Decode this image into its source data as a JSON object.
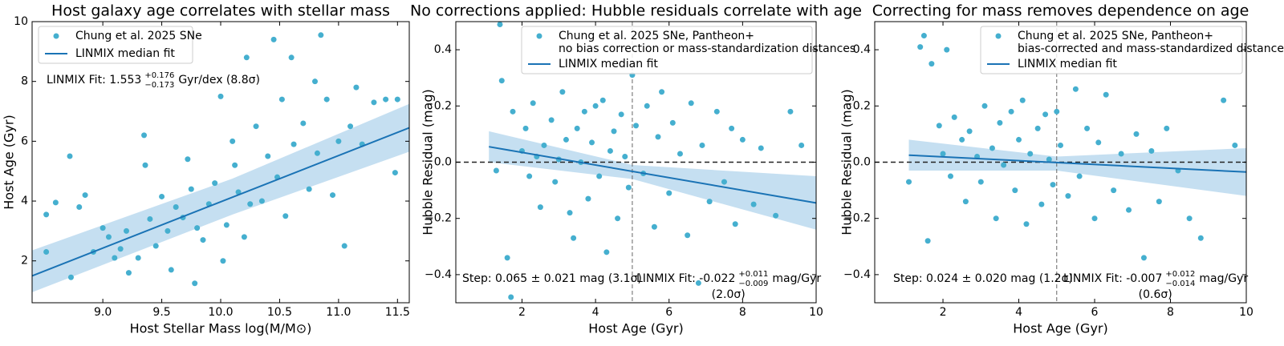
{
  "chart_data": [
    {
      "type": "scatter",
      "title": "Host galaxy age correlates with stellar mass",
      "xlabel": "Host Stellar Mass log(M/M⊙)",
      "ylabel": "Host Age (Gyr)",
      "xlim": [
        8.4,
        11.6
      ],
      "ylim": [
        0.6,
        10
      ],
      "xticks": [
        {
          "value": 9,
          "label": "9.0"
        },
        9.5,
        {
          "value": 10,
          "label": "10.0"
        },
        10.5,
        {
          "value": 11,
          "label": "11.0"
        },
        11.5
      ],
      "yticks": [
        2,
        4,
        6,
        8,
        10
      ],
      "series": [
        {
          "name": "Chung et al. 2025 SNe",
          "color": "#45afcf",
          "x": [
            8.52,
            8.52,
            8.6,
            8.72,
            8.73,
            8.8,
            8.85,
            8.92,
            9.0,
            9.05,
            9.1,
            9.15,
            9.2,
            9.22,
            9.3,
            9.35,
            9.36,
            9.4,
            9.45,
            9.5,
            9.55,
            9.58,
            9.62,
            9.68,
            9.72,
            9.75,
            9.78,
            9.8,
            9.85,
            9.9,
            9.95,
            10.0,
            10.02,
            10.05,
            10.1,
            10.12,
            10.15,
            10.2,
            10.22,
            10.25,
            10.3,
            10.35,
            10.4,
            10.45,
            10.48,
            10.52,
            10.55,
            10.6,
            10.62,
            10.7,
            10.75,
            10.8,
            10.82,
            10.85,
            10.9,
            10.95,
            11.0,
            11.05,
            11.1,
            11.15,
            11.2,
            11.3,
            11.4,
            11.48,
            11.5
          ],
          "values": [
            3.55,
            2.3,
            3.95,
            5.5,
            1.45,
            3.8,
            4.2,
            2.3,
            3.1,
            2.8,
            2.1,
            2.4,
            3.0,
            1.6,
            2.1,
            6.2,
            5.2,
            3.4,
            2.5,
            4.15,
            3.0,
            1.7,
            3.8,
            3.45,
            5.4,
            4.4,
            1.25,
            3.1,
            2.7,
            3.9,
            4.6,
            7.5,
            2.0,
            3.2,
            6.0,
            5.2,
            4.3,
            2.8,
            8.8,
            3.9,
            6.5,
            4.0,
            5.5,
            9.4,
            4.8,
            7.4,
            3.5,
            8.8,
            5.9,
            6.6,
            4.4,
            8.0,
            5.6,
            9.55,
            7.4,
            4.2,
            6.0,
            2.5,
            6.5,
            7.8,
            5.9,
            7.3,
            7.4,
            4.95,
            7.4
          ]
        },
        {
          "name": "LINMIX median fit",
          "color": "#1a73b5",
          "type": "line",
          "x": [
            8.4,
            11.6
          ],
          "values": [
            1.5,
            6.45
          ]
        }
      ],
      "fit_band": {
        "color": "#9ecae8",
        "x": [
          8.4,
          10.1,
          11.6
        ],
        "lower": [
          0.95,
          3.55,
          5.65
        ],
        "upper": [
          2.35,
          4.75,
          7.25
        ]
      },
      "fit_annotation": {
        "text": "LINMIX Fit: 1.553",
        "upper": "+0.176",
        "lower": "−0.173",
        "unit": "Gyr/dex (8.8σ)"
      }
    },
    {
      "type": "scatter",
      "title": "No corrections applied: Hubble residuals correlate with age",
      "xlabel": "Host Age (Gyr)",
      "ylabel": "Hubble Residual (mag)",
      "xlim": [
        0.2,
        10
      ],
      "ylim": [
        -0.5,
        0.5
      ],
      "xticks": [
        2,
        4,
        6,
        8,
        10
      ],
      "yticks": [
        {
          "value": -0.4,
          "label": "−0.4"
        },
        {
          "value": -0.2,
          "label": "−0.2"
        },
        {
          "value": 0,
          "label": "0.0"
        },
        0.2,
        0.4
      ],
      "series": [
        {
          "name": "Chung et al. 2025 SNe, Pantheon+\nno bias correction or mass-standardization distances",
          "color": "#45afcf",
          "x": [
            1.3,
            1.4,
            1.45,
            1.6,
            1.7,
            1.75,
            2.0,
            2.1,
            2.2,
            2.3,
            2.4,
            2.5,
            2.6,
            2.8,
            2.9,
            3.0,
            3.1,
            3.2,
            3.3,
            3.4,
            3.5,
            3.6,
            3.7,
            3.8,
            3.9,
            4.0,
            4.1,
            4.2,
            4.3,
            4.4,
            4.5,
            4.6,
            4.7,
            4.8,
            4.9,
            5.0,
            5.1,
            5.3,
            5.4,
            5.6,
            5.7,
            5.8,
            6.0,
            6.1,
            6.3,
            6.5,
            6.6,
            6.8,
            6.9,
            7.1,
            7.3,
            7.5,
            7.7,
            7.8,
            8.0,
            8.3,
            8.5,
            8.9,
            9.3,
            9.6
          ],
          "values": [
            -0.03,
            0.49,
            0.29,
            -0.34,
            -0.48,
            0.18,
            0.04,
            0.12,
            -0.05,
            0.21,
            0.02,
            -0.16,
            0.06,
            0.15,
            -0.07,
            0.01,
            0.25,
            0.08,
            -0.18,
            -0.27,
            0.12,
            0.0,
            0.18,
            -0.13,
            0.07,
            0.2,
            -0.05,
            0.22,
            -0.32,
            0.04,
            0.11,
            -0.2,
            0.17,
            0.02,
            -0.09,
            0.31,
            0.13,
            -0.04,
            0.2,
            -0.23,
            0.09,
            0.25,
            -0.11,
            0.14,
            0.03,
            -0.26,
            0.21,
            -0.43,
            0.06,
            -0.14,
            0.18,
            -0.07,
            0.12,
            -0.22,
            0.08,
            -0.15,
            0.05,
            -0.19,
            0.18,
            0.06
          ]
        },
        {
          "name": "LINMIX median fit",
          "color": "#1a73b5",
          "type": "line",
          "x": [
            1.1,
            10
          ],
          "values": [
            0.055,
            -0.145
          ]
        }
      ],
      "fit_band": {
        "color": "#9ecae8",
        "x": [
          1.1,
          5,
          10
        ],
        "lower": [
          0.0,
          -0.06,
          -0.24
        ],
        "upper": [
          0.11,
          -0.01,
          -0.05
        ]
      },
      "reference_lines": {
        "y": 0,
        "x": 5
      },
      "step_annotation": "Step: 0.065 ± 0.021 mag (3.1σ)",
      "fit_annotation": {
        "text": "LINMIX Fit: -0.022",
        "upper": "+0.011",
        "lower": "−0.009",
        "unit": "mag/Gyr",
        "note": "(2.0σ)"
      }
    },
    {
      "type": "scatter",
      "title": "Correcting for mass removes dependence on age",
      "xlabel": "Host Age (Gyr)",
      "ylabel": "Hubble Residual (mag)",
      "xlim": [
        0.2,
        10
      ],
      "ylim": [
        -0.5,
        0.5
      ],
      "xticks": [
        2,
        4,
        6,
        8,
        10
      ],
      "yticks": [
        {
          "value": -0.4,
          "label": "−0.4"
        },
        {
          "value": -0.2,
          "label": "−0.2"
        },
        {
          "value": 0,
          "label": "0.0"
        },
        0.2,
        0.4
      ],
      "series": [
        {
          "name": "Chung et al. 2025 SNe, Pantheon+\nbias-corrected and mass-standardized distances",
          "color": "#45afcf",
          "x": [
            1.1,
            1.4,
            1.5,
            1.6,
            1.7,
            1.9,
            2.0,
            2.1,
            2.2,
            2.3,
            2.5,
            2.6,
            2.7,
            2.9,
            3.0,
            3.1,
            3.3,
            3.4,
            3.5,
            3.6,
            3.8,
            3.9,
            4.0,
            4.1,
            4.2,
            4.3,
            4.5,
            4.6,
            4.7,
            4.8,
            4.9,
            5.0,
            5.1,
            5.3,
            5.5,
            5.6,
            5.8,
            6.0,
            6.1,
            6.3,
            6.5,
            6.7,
            6.9,
            7.1,
            7.3,
            7.5,
            7.7,
            7.9,
            8.2,
            8.5,
            8.8,
            9.4,
            9.7
          ],
          "values": [
            -0.07,
            0.41,
            0.45,
            -0.28,
            0.35,
            0.13,
            0.03,
            0.4,
            -0.05,
            0.16,
            0.08,
            -0.14,
            0.11,
            0.02,
            -0.07,
            0.2,
            0.05,
            -0.2,
            0.14,
            -0.01,
            0.18,
            -0.1,
            0.08,
            0.22,
            -0.22,
            0.03,
            0.12,
            -0.15,
            0.17,
            0.01,
            -0.08,
            0.18,
            0.06,
            -0.12,
            0.26,
            -0.05,
            0.12,
            -0.2,
            0.07,
            0.24,
            -0.1,
            0.03,
            -0.17,
            0.1,
            -0.34,
            0.04,
            -0.14,
            0.12,
            -0.03,
            -0.2,
            -0.27,
            0.22,
            0.06
          ]
        },
        {
          "name": "LINMIX median fit",
          "color": "#1a73b5",
          "type": "line",
          "x": [
            1.1,
            10
          ],
          "values": [
            0.025,
            -0.035
          ]
        }
      ],
      "fit_band": {
        "color": "#9ecae8",
        "x": [
          1.1,
          5,
          10
        ],
        "lower": [
          -0.03,
          -0.03,
          -0.12
        ],
        "upper": [
          0.08,
          0.02,
          0.05
        ]
      },
      "reference_lines": {
        "y": 0,
        "x": 5
      },
      "step_annotation": "Step: 0.024 ± 0.020 mag (1.2σ)",
      "fit_annotation": {
        "text": "LINMIX Fit: -0.007",
        "upper": "+0.012",
        "lower": "−0.014",
        "unit": "mag/Gyr",
        "note": "(0.6σ)"
      }
    }
  ]
}
